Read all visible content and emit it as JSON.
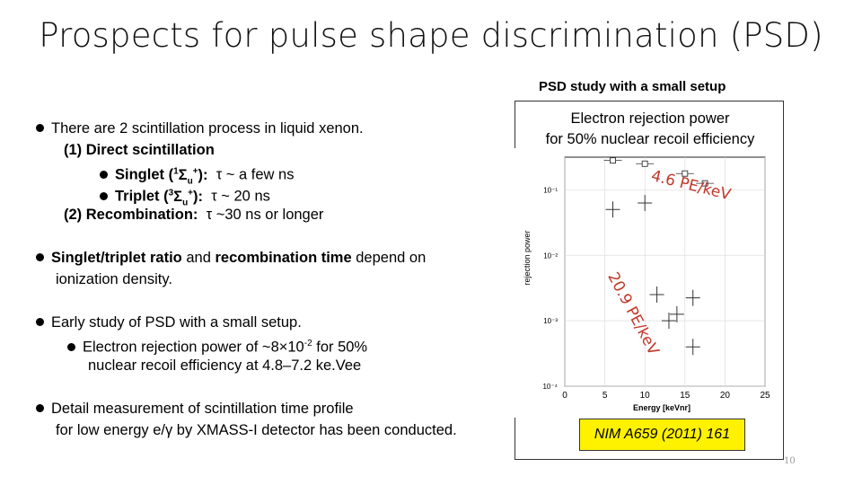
{
  "slide": {
    "title": "Prospects for pulse shape discrimination (PSD)",
    "page_number": "10"
  },
  "left_panel": {
    "b1_text": "There are 2 scintillation process in liquid xenon.",
    "direct_label": "(1) Direct scintillation",
    "singlet_label": "Singlet (",
    "singlet_state_sup": "1",
    "singlet_state_sym": "Σ",
    "singlet_state_sub": "u",
    "singlet_state_sup2": "+",
    "singlet_close": "):",
    "singlet_tau": "τ ~ a few ns",
    "triplet_label": "Triplet (",
    "triplet_state_sup": "3",
    "triplet_state_sym": "Σ",
    "triplet_state_sub": "u",
    "triplet_state_sup2": "+",
    "triplet_close": "):",
    "triplet_tau": "τ ~ 20 ns",
    "recomb_label": "(2) Recombination:",
    "recomb_tau": "τ ~30 ns or longer",
    "b2_part1": "Singlet/triplet ratio",
    "b2_part2": " and ",
    "b2_part3": "recombination time",
    "b2_part4": " depend on",
    "b2_line2": "ionization density.",
    "b3_text": "Early study of PSD with a small setup.",
    "b3_sub1_a": "Electron rejection power of ~8×10",
    "b3_sub1_exp": "-2",
    "b3_sub1_b": " for 50%",
    "b3_sub2": "nuclear recoil efficiency at 4.8–7.2 ke.Vee",
    "b4_line1": "Detail measurement of scintillation time profile",
    "b4_line2": "for low energy e/γ by XMASS-I detector has been conducted."
  },
  "right_panel": {
    "setup_label": "PSD study with a small setup",
    "caption_line1": "Electron rejection power",
    "caption_line2": "for 50% nuclear recoil efficiency",
    "annotation_1": "4.6 PE/keV",
    "annotation_2": "20.9 PE/keV",
    "reference": "NIM A659 (2011) 161"
  },
  "chart_data": {
    "type": "scatter",
    "title": "",
    "xlabel": "Energy [keVnr]",
    "ylabel": "rejection power",
    "x_ticks": [
      "0",
      "5",
      "10",
      "15",
      "20",
      "25"
    ],
    "y_ticks": [
      "10⁻⁴",
      "10⁻³",
      "10⁻²",
      "10⁻¹"
    ],
    "xlim": [
      0,
      25
    ],
    "ylim_log10": [
      -4,
      -0.5
    ],
    "series": [
      {
        "name": "4.6 PE/keV",
        "marker": "open-square",
        "points": [
          [
            6,
            -0.55
          ],
          [
            10,
            -0.6
          ],
          [
            15,
            -0.75
          ],
          [
            17.5,
            -0.9
          ]
        ]
      },
      {
        "name": "20.9 PE/keV",
        "marker": "cross",
        "points": [
          [
            6,
            -1.3
          ],
          [
            10,
            -1.2
          ],
          [
            11.5,
            -2.6
          ],
          [
            13,
            -3.0
          ],
          [
            14,
            -2.9
          ],
          [
            16,
            -2.65
          ],
          [
            16,
            -3.4
          ]
        ]
      }
    ]
  }
}
